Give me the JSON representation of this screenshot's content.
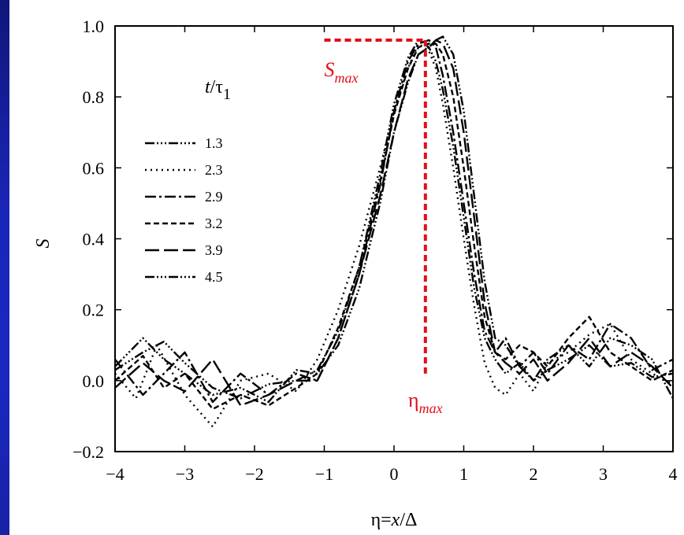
{
  "chart_data": {
    "type": "line",
    "xlabel_parts": [
      "η=",
      "x",
      "/Δ"
    ],
    "ylabel": "S",
    "xlim": [
      -4,
      4
    ],
    "ylim": [
      -0.2,
      1.0
    ],
    "x_ticks": [
      "−4",
      "−3",
      "−2",
      "−1",
      "0",
      "1",
      "2",
      "3",
      "4"
    ],
    "x_tick_values": [
      -4,
      -3,
      -2,
      -1,
      0,
      1,
      2,
      3,
      4
    ],
    "y_ticks": [
      "1.0",
      "0.8",
      "0.6",
      "0.4",
      "0.2",
      "0.0",
      "−0.2"
    ],
    "y_tick_values": [
      1.0,
      0.8,
      0.6,
      0.4,
      0.2,
      0.0,
      -0.2
    ],
    "legend_title": {
      "t": "t",
      "slash": "/τ",
      "sub": "1"
    },
    "legend_placement": "upper-left",
    "series": [
      {
        "name": "1.3",
        "dash": "12,3,2,3,2,3,2,3",
        "x": [
          -4,
          -3.6,
          -3.3,
          -3,
          -2.6,
          -2.2,
          -1.8,
          -1.4,
          -1.1,
          -0.8,
          -0.5,
          -0.2,
          0,
          0.2,
          0.35,
          0.5,
          0.6,
          0.7,
          0.85,
          1.0,
          1.15,
          1.3,
          1.45,
          1.6,
          1.8,
          2.0,
          2.2,
          2.5,
          2.8,
          3.1,
          3.4,
          3.7,
          4
        ],
        "y": [
          0.03,
          0.08,
          0.11,
          0.05,
          -0.02,
          -0.05,
          -0.01,
          0.0,
          0.03,
          0.14,
          0.32,
          0.58,
          0.78,
          0.91,
          0.96,
          0.94,
          0.9,
          0.82,
          0.66,
          0.46,
          0.26,
          0.12,
          0.06,
          0.02,
          0.05,
          0.0,
          0.03,
          0.06,
          0.1,
          0.04,
          0.05,
          0.01,
          0.02
        ]
      },
      {
        "name": "2.3",
        "dash": "2,5",
        "x": [
          -4,
          -3.7,
          -3.4,
          -3,
          -2.6,
          -2.2,
          -1.8,
          -1.4,
          -1.1,
          -0.8,
          -0.5,
          -0.2,
          0,
          0.2,
          0.35,
          0.5,
          0.6,
          0.7,
          0.85,
          1.0,
          1.15,
          1.3,
          1.45,
          1.6,
          1.8,
          2.0,
          2.2,
          2.5,
          2.8,
          3.1,
          3.4,
          3.7,
          4
        ],
        "y": [
          0.02,
          -0.05,
          0.1,
          -0.04,
          -0.13,
          0.0,
          0.02,
          -0.03,
          0.06,
          0.2,
          0.38,
          0.6,
          0.76,
          0.88,
          0.95,
          0.93,
          0.88,
          0.78,
          0.6,
          0.4,
          0.21,
          0.05,
          -0.02,
          -0.04,
          0.02,
          -0.03,
          0.05,
          0.08,
          0.13,
          0.16,
          0.06,
          0.02,
          -0.01
        ]
      },
      {
        "name": "2.9",
        "dash": "14,4,3,4",
        "x": [
          -4,
          -3.6,
          -3.3,
          -3,
          -2.6,
          -2.2,
          -1.8,
          -1.4,
          -1.1,
          -0.8,
          -0.5,
          -0.2,
          0,
          0.2,
          0.35,
          0.5,
          0.6,
          0.7,
          0.85,
          1.0,
          1.15,
          1.3,
          1.45,
          1.6,
          1.8,
          2.0,
          2.2,
          2.5,
          2.8,
          3.1,
          3.4,
          3.7,
          4
        ],
        "y": [
          0.06,
          -0.04,
          0.02,
          0.08,
          -0.06,
          0.02,
          -0.04,
          0.02,
          0.0,
          0.12,
          0.3,
          0.55,
          0.76,
          0.9,
          0.95,
          0.96,
          0.94,
          0.86,
          0.7,
          0.5,
          0.3,
          0.14,
          0.08,
          0.12,
          0.04,
          0.08,
          0.02,
          0.1,
          0.06,
          0.16,
          0.12,
          0.03,
          0.06
        ]
      },
      {
        "name": "3.2",
        "dash": "7,4",
        "x": [
          -4,
          -3.6,
          -3.3,
          -3,
          -2.6,
          -2.2,
          -1.8,
          -1.4,
          -1.1,
          -0.8,
          -0.5,
          -0.2,
          0,
          0.2,
          0.35,
          0.5,
          0.6,
          0.7,
          0.85,
          1.0,
          1.15,
          1.3,
          1.45,
          1.6,
          1.8,
          2.0,
          2.2,
          2.5,
          2.8,
          3.1,
          3.4,
          3.7,
          4
        ],
        "y": [
          0.0,
          0.07,
          -0.02,
          0.02,
          -0.08,
          -0.04,
          -0.07,
          -0.02,
          0.02,
          0.15,
          0.32,
          0.56,
          0.75,
          0.88,
          0.94,
          0.95,
          0.95,
          0.92,
          0.8,
          0.6,
          0.38,
          0.18,
          0.08,
          0.06,
          0.1,
          0.08,
          0.04,
          0.12,
          0.18,
          0.08,
          0.04,
          0.0,
          0.03
        ]
      },
      {
        "name": "3.9",
        "dash": "18,6",
        "x": [
          -4,
          -3.6,
          -3.3,
          -3,
          -2.6,
          -2.2,
          -1.8,
          -1.4,
          -1.1,
          -0.8,
          -0.5,
          -0.2,
          0,
          0.2,
          0.35,
          0.5,
          0.6,
          0.7,
          0.85,
          1.0,
          1.15,
          1.3,
          1.45,
          1.6,
          1.8,
          2.0,
          2.2,
          2.5,
          2.8,
          3.1,
          3.4,
          3.7,
          4
        ],
        "y": [
          -0.02,
          0.05,
          0.0,
          -0.03,
          0.06,
          -0.07,
          -0.04,
          0.0,
          0.0,
          0.12,
          0.3,
          0.52,
          0.7,
          0.85,
          0.92,
          0.94,
          0.96,
          0.95,
          0.88,
          0.7,
          0.46,
          0.22,
          0.08,
          0.05,
          0.02,
          0.06,
          0.0,
          0.05,
          0.12,
          0.04,
          0.08,
          0.04,
          -0.02
        ]
      },
      {
        "name": "4.5",
        "dash": "12,3,2,3,2,3,2,3",
        "x": [
          -4,
          -3.6,
          -3.3,
          -3,
          -2.6,
          -2.2,
          -1.8,
          -1.4,
          -1.1,
          -0.8,
          -0.5,
          -0.2,
          0,
          0.2,
          0.35,
          0.5,
          0.6,
          0.7,
          0.85,
          1.0,
          1.15,
          1.3,
          1.45,
          1.6,
          1.8,
          2.0,
          2.2,
          2.5,
          2.8,
          3.1,
          3.4,
          3.7,
          4
        ],
        "y": [
          0.04,
          0.12,
          0.06,
          0.02,
          -0.04,
          -0.02,
          -0.06,
          0.03,
          0.02,
          0.1,
          0.26,
          0.5,
          0.7,
          0.84,
          0.92,
          0.94,
          0.96,
          0.97,
          0.92,
          0.76,
          0.52,
          0.28,
          0.12,
          0.1,
          0.04,
          0.0,
          0.06,
          0.1,
          0.04,
          0.12,
          0.1,
          0.06,
          -0.05
        ]
      }
    ],
    "annotations": {
      "smax": {
        "base": "S",
        "sub": "max",
        "value_x": 0.45,
        "value_y": 0.96,
        "x_start": -1.0
      },
      "etamax": {
        "base": "η",
        "sub": "max",
        "value_x": 0.45,
        "value_y": 0.02
      },
      "color": "#e0101a"
    }
  }
}
